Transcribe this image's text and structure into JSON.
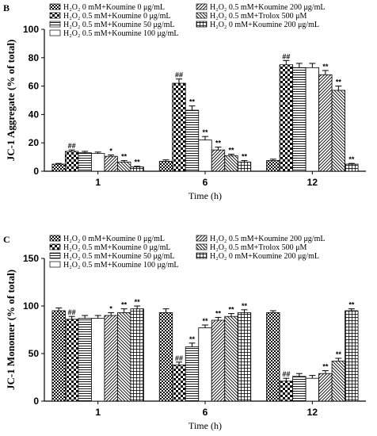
{
  "colors": {
    "axis": "#000000",
    "background": "#ffffff"
  },
  "legend_entries": [
    "H₂O₂ 0 mM+Koumine 0 μg/mL",
    "H₂O₂ 0.5 mM+Koumine 0 μg/mL",
    "H₂O₂ 0.5 mM+Koumine 50 μg/mL",
    "H₂O₂ 0.5 mM+Koumine 100 μg/mL",
    "H₂O₂ 0.5 mM+Koumine 200 μg/mL",
    "H₂O₂ 0.5 mM+Trolox 500 μM",
    "H₂O₂ 0 mM+Koumine 200 μg/mL"
  ],
  "chart_data": [
    {
      "panel": "B",
      "type": "bar",
      "ylabel": "JC-1 Aggregate (% of total)",
      "xlabel": "Time (h)",
      "categories": [
        "1",
        "6",
        "12"
      ],
      "ylim": [
        0,
        100
      ],
      "yticks": [
        0,
        20,
        40,
        60,
        80,
        100
      ],
      "legend_position": "top",
      "series": [
        {
          "name": "H₂O₂ 0 mM+Koumine 0 μg/mL",
          "pattern": "checker-small",
          "values": [
            5,
            7,
            7.5
          ],
          "errors": [
            0.5,
            1,
            1
          ],
          "sig": [
            "",
            "",
            ""
          ]
        },
        {
          "name": "H₂O₂ 0.5 mM+Koumine 0 μg/mL",
          "pattern": "checker-large",
          "values": [
            14,
            62,
            75
          ],
          "errors": [
            1,
            3,
            3
          ],
          "sig": [
            "##",
            "##",
            "##"
          ]
        },
        {
          "name": "H₂O₂ 0.5 mM+Koumine 50 μg/mL",
          "pattern": "hlines",
          "values": [
            13,
            43,
            73
          ],
          "errors": [
            1,
            3,
            3
          ],
          "sig": [
            "",
            "**",
            ""
          ]
        },
        {
          "name": "H₂O₂ 0.5 mM+Koumine 100 μg/mL",
          "pattern": "white",
          "values": [
            12.5,
            22,
            73
          ],
          "errors": [
            1,
            2.5,
            3
          ],
          "sig": [
            "",
            "**",
            ""
          ]
        },
        {
          "name": "H₂O₂ 0.5 mM+Koumine 200 μg/mL",
          "pattern": "diag-right",
          "values": [
            10.5,
            15,
            68
          ],
          "errors": [
            1,
            2,
            3
          ],
          "sig": [
            "*",
            "**",
            "**"
          ]
        },
        {
          "name": "H₂O₂ 0.5 mM+Trolox 500 μM",
          "pattern": "diag-left",
          "values": [
            6.5,
            11,
            57
          ],
          "errors": [
            1,
            1,
            3
          ],
          "sig": [
            "**",
            "**",
            "**"
          ]
        },
        {
          "name": "H₂O₂ 0 mM+Koumine 200 μg/mL",
          "pattern": "grid",
          "values": [
            3,
            6.5,
            5
          ],
          "errors": [
            0.5,
            1,
            0.5
          ],
          "sig": [
            "**",
            "**",
            "**"
          ]
        }
      ]
    },
    {
      "panel": "C",
      "type": "bar",
      "ylabel": "JC-1 Monomer (% of total)",
      "xlabel": "Time (h)",
      "categories": [
        "1",
        "6",
        "12"
      ],
      "ylim": [
        0,
        150
      ],
      "yticks": [
        0,
        50,
        100,
        150
      ],
      "legend_position": "top",
      "series": [
        {
          "name": "H₂O₂ 0 mM+Koumine 0 μg/mL",
          "pattern": "checker-small",
          "values": [
            95,
            93,
            93
          ],
          "errors": [
            3,
            4,
            2
          ],
          "sig": [
            "",
            "",
            ""
          ]
        },
        {
          "name": "H₂O₂ 0.5 mM+Koumine 0 μg/mL",
          "pattern": "checker-large",
          "values": [
            86,
            38,
            21
          ],
          "errors": [
            3,
            3,
            3
          ],
          "sig": [
            "##",
            "##",
            "##"
          ]
        },
        {
          "name": "H₂O₂ 0.5 mM+Koumine 50 μg/mL",
          "pattern": "hlines",
          "values": [
            87,
            57,
            26
          ],
          "errors": [
            3,
            4,
            3
          ],
          "sig": [
            "",
            "**",
            ""
          ]
        },
        {
          "name": "H₂O₂ 0.5 mM+Koumine 100 μg/mL",
          "pattern": "white",
          "values": [
            87,
            77,
            24
          ],
          "errors": [
            3,
            3,
            3
          ],
          "sig": [
            "",
            "**",
            ""
          ]
        },
        {
          "name": "H₂O₂ 0.5 mM+Koumine 200 μg/mL",
          "pattern": "diag-right",
          "values": [
            90,
            85,
            29
          ],
          "errors": [
            3,
            3,
            3
          ],
          "sig": [
            "*",
            "**",
            "**"
          ]
        },
        {
          "name": "H₂O₂ 0.5 mM+Trolox 500 μM",
          "pattern": "diag-left",
          "values": [
            93,
            89,
            42
          ],
          "errors": [
            4,
            3,
            3
          ],
          "sig": [
            "**",
            "**",
            "**"
          ]
        },
        {
          "name": "H₂O₂ 0 mM+Koumine 200 μg/mL",
          "pattern": "grid",
          "values": [
            97,
            93,
            95
          ],
          "errors": [
            3,
            3,
            2
          ],
          "sig": [
            "**",
            "**",
            "**"
          ]
        }
      ]
    }
  ]
}
